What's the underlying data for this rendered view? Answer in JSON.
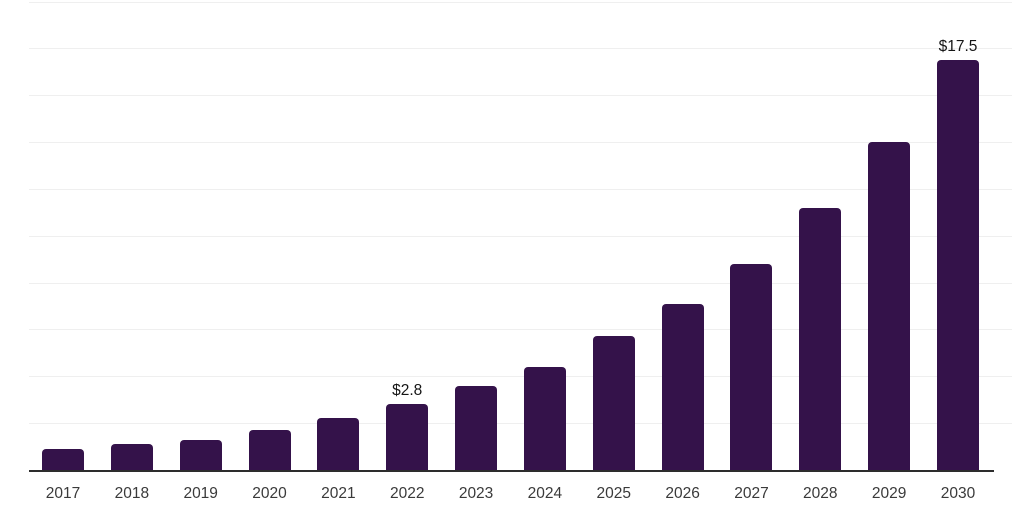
{
  "chart_data": {
    "type": "bar",
    "categories": [
      "2017",
      "2018",
      "2019",
      "2020",
      "2021",
      "2022",
      "2023",
      "2024",
      "2025",
      "2026",
      "2027",
      "2028",
      "2029",
      "2030"
    ],
    "values": [
      0.9,
      1.1,
      1.3,
      1.7,
      2.2,
      2.8,
      3.6,
      4.4,
      5.7,
      7.1,
      8.8,
      11.2,
      14.0,
      17.5
    ],
    "data_labels": {
      "2022": "$2.8",
      "2030": "$17.5"
    },
    "title": "",
    "xlabel": "",
    "ylabel": "",
    "ylim": [
      0,
      20
    ],
    "gridline_step": 2,
    "grid": true,
    "legend": "none",
    "colors": {
      "bar": "#34124a",
      "axis": "#2d2d2d",
      "gridline": "#efefef",
      "tick_label": "#3a3a3a",
      "data_label": "#151515",
      "background": "#ffffff"
    }
  }
}
